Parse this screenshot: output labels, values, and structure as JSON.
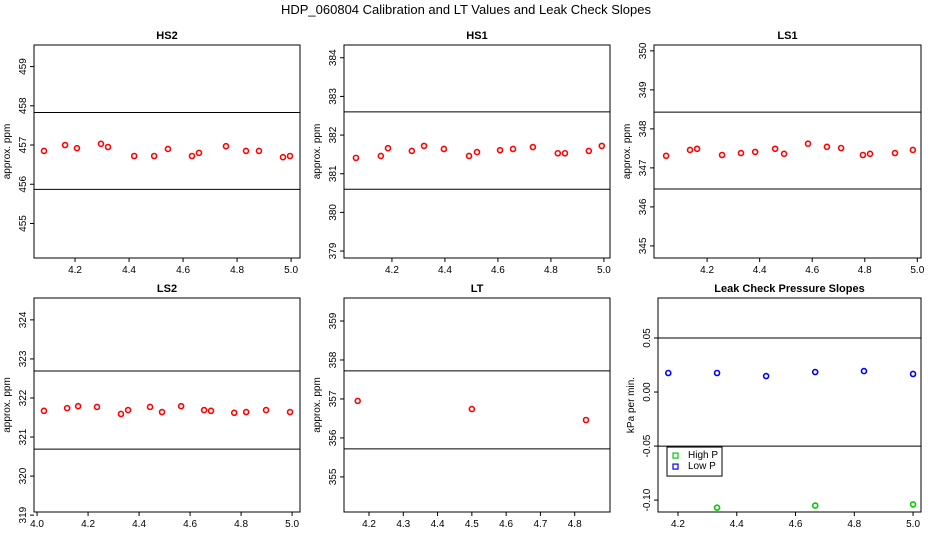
{
  "title": "HDP_060804  Calibration and LT Values and Leak Check Slopes",
  "chart_data": [
    {
      "type": "scatter",
      "title": "HS2",
      "ylabel": "approx. ppm",
      "xlim": [
        4.048,
        5.033
      ],
      "ylim": [
        454.12,
        459.55
      ],
      "xticks": [
        4.2,
        4.4,
        4.6,
        4.8,
        5.0
      ],
      "xtick_labels": [
        "4.2",
        "4.4",
        "4.6",
        "4.8",
        "5.0"
      ],
      "yticks": [
        455,
        456,
        457,
        458,
        459
      ],
      "ytick_labels": [
        "455",
        "456",
        "457",
        "458",
        "459"
      ],
      "hlines": [
        457.83,
        455.87
      ],
      "series": [
        {
          "color": "#ff0000",
          "marker": "circle",
          "x": [
            4.085,
            4.163,
            4.207,
            4.296,
            4.322,
            4.419,
            4.493,
            4.544,
            4.633,
            4.659,
            4.759,
            4.833,
            4.881,
            4.97,
            4.996
          ],
          "y": [
            456.85,
            457.0,
            456.92,
            457.03,
            456.95,
            456.72,
            456.72,
            456.9,
            456.72,
            456.8,
            456.97,
            456.85,
            456.85,
            456.69,
            456.72
          ]
        }
      ]
    },
    {
      "type": "scatter",
      "title": "HS1",
      "ylabel": "approx. ppm",
      "xlim": [
        4.019,
        5.023
      ],
      "ylim": [
        378.82,
        384.33
      ],
      "xticks": [
        4.2,
        4.4,
        4.6,
        4.8,
        5.0
      ],
      "xtick_labels": [
        "4.2",
        "4.4",
        "4.6",
        "4.8",
        "5.0"
      ],
      "yticks": [
        379,
        380,
        381,
        382,
        383,
        384
      ],
      "ytick_labels": [
        "379",
        "380",
        "381",
        "382",
        "383",
        "384"
      ],
      "hlines": [
        382.6,
        380.6
      ],
      "series": [
        {
          "color": "#ff0000",
          "marker": "circle",
          "x": [
            4.064,
            4.158,
            4.185,
            4.275,
            4.321,
            4.396,
            4.491,
            4.521,
            4.608,
            4.657,
            4.732,
            4.826,
            4.853,
            4.943,
            4.992
          ],
          "y": [
            381.41,
            381.46,
            381.66,
            381.59,
            381.72,
            381.64,
            381.46,
            381.56,
            381.61,
            381.64,
            381.69,
            381.53,
            381.53,
            381.59,
            381.72
          ]
        }
      ]
    },
    {
      "type": "scatter",
      "title": "LS1",
      "ylabel": "approx. ppm",
      "xlim": [
        3.998,
        5.014
      ],
      "ylim": [
        344.69,
        350.15
      ],
      "xticks": [
        4.2,
        4.4,
        4.6,
        4.8,
        5.0
      ],
      "xtick_labels": [
        "4.2",
        "4.4",
        "4.6",
        "4.8",
        "5.0"
      ],
      "yticks": [
        345,
        346,
        347,
        348,
        349,
        350
      ],
      "ytick_labels": [
        "345",
        "346",
        "347",
        "348",
        "349",
        "350"
      ],
      "hlines": [
        348.43,
        346.46
      ],
      "series": [
        {
          "color": "#ff0000",
          "marker": "circle",
          "x": [
            4.044,
            4.135,
            4.162,
            4.257,
            4.329,
            4.383,
            4.459,
            4.493,
            4.584,
            4.656,
            4.71,
            4.793,
            4.82,
            4.915,
            4.983
          ],
          "y": [
            347.31,
            347.46,
            347.49,
            347.33,
            347.38,
            347.41,
            347.49,
            347.36,
            347.62,
            347.54,
            347.51,
            347.33,
            347.36,
            347.38,
            347.46
          ]
        }
      ]
    },
    {
      "type": "scatter",
      "title": "LS2",
      "ylabel": "approx. ppm",
      "xlim": [
        3.988,
        5.031
      ],
      "ylim": [
        319.08,
        324.56
      ],
      "xticks": [
        4.0,
        4.2,
        4.4,
        4.6,
        4.8,
        5.0
      ],
      "xtick_labels": [
        "4.0",
        "4.2",
        "4.4",
        "4.6",
        "4.8",
        "5.0"
      ],
      "yticks": [
        319,
        320,
        321,
        322,
        323,
        324
      ],
      "ytick_labels": [
        "319",
        "320",
        "321",
        "322",
        "323",
        "324"
      ],
      "hlines": [
        322.69,
        320.69
      ],
      "series": [
        {
          "color": "#ff0000",
          "marker": "circle",
          "x": [
            4.027,
            4.118,
            4.161,
            4.235,
            4.329,
            4.357,
            4.443,
            4.49,
            4.565,
            4.655,
            4.682,
            4.773,
            4.82,
            4.898,
            4.992
          ],
          "y": [
            321.67,
            321.74,
            321.79,
            321.77,
            321.59,
            321.69,
            321.77,
            321.64,
            321.79,
            321.69,
            321.67,
            321.62,
            321.64,
            321.69,
            321.64
          ]
        }
      ]
    },
    {
      "type": "scatter",
      "title": "LT",
      "ylabel": "approx. ppm",
      "xlim": [
        4.127,
        4.903
      ],
      "ylim": [
        354.1,
        359.59
      ],
      "xticks": [
        4.2,
        4.3,
        4.4,
        4.5,
        4.6,
        4.7,
        4.8
      ],
      "xtick_labels": [
        "4.2",
        "4.3",
        "4.4",
        "4.5",
        "4.6",
        "4.7",
        "4.8"
      ],
      "yticks": [
        355,
        356,
        357,
        358,
        359
      ],
      "ytick_labels": [
        "355",
        "356",
        "357",
        "358",
        "359"
      ],
      "hlines": [
        357.72,
        355.72
      ],
      "series": [
        {
          "color": "#ff0000",
          "marker": "circle",
          "x": [
            4.167,
            4.5,
            4.833
          ],
          "y": [
            356.95,
            356.74,
            356.46
          ]
        }
      ]
    },
    {
      "type": "scatter",
      "title": "Leak Check Pressure Slopes",
      "ylabel": "kPa per min.",
      "xlim": [
        4.132,
        5.027
      ],
      "ylim": [
        -0.111,
        0.087
      ],
      "xticks": [
        4.2,
        4.4,
        4.6,
        4.8,
        5.0
      ],
      "xtick_labels": [
        "4.2",
        "4.4",
        "4.6",
        "4.8",
        "5.0"
      ],
      "yticks": [
        -0.1,
        -0.05,
        0.0,
        0.05
      ],
      "ytick_labels": [
        "-0.10",
        "-0.05",
        "0.00",
        "0.05"
      ],
      "hlines": [
        0.05,
        -0.05
      ],
      "legend": {
        "placement": "bottom-left",
        "entries": [
          "High P",
          "Low P"
        ]
      },
      "series": [
        {
          "name": "High P",
          "color": "#00cc00",
          "marker": "circle",
          "x": [
            4.333,
            4.667,
            5.0
          ],
          "y": [
            -0.107,
            -0.105,
            -0.104
          ]
        },
        {
          "name": "Low P",
          "color": "#0000ff",
          "marker": "circle",
          "x": [
            4.167,
            4.333,
            4.5,
            4.667,
            4.833,
            5.0
          ],
          "y": [
            0.0176,
            0.0176,
            0.0148,
            0.0185,
            0.0194,
            0.0167
          ]
        }
      ]
    }
  ]
}
